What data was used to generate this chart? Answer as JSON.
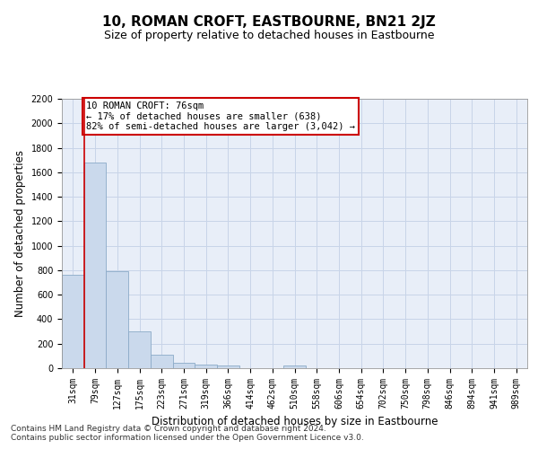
{
  "title": "10, ROMAN CROFT, EASTBOURNE, BN21 2JZ",
  "subtitle": "Size of property relative to detached houses in Eastbourne",
  "xlabel": "Distribution of detached houses by size in Eastbourne",
  "ylabel": "Number of detached properties",
  "footer_line1": "Contains HM Land Registry data © Crown copyright and database right 2024.",
  "footer_line2": "Contains public sector information licensed under the Open Government Licence v3.0.",
  "bar_labels": [
    "31sqm",
    "79sqm",
    "127sqm",
    "175sqm",
    "223sqm",
    "271sqm",
    "319sqm",
    "366sqm",
    "414sqm",
    "462sqm",
    "510sqm",
    "558sqm",
    "606sqm",
    "654sqm",
    "702sqm",
    "750sqm",
    "798sqm",
    "846sqm",
    "894sqm",
    "941sqm",
    "989sqm"
  ],
  "bar_values": [
    760,
    1680,
    790,
    300,
    110,
    45,
    32,
    20,
    0,
    0,
    20,
    0,
    0,
    0,
    0,
    0,
    0,
    0,
    0,
    0,
    0
  ],
  "bar_color": "#cad9ec",
  "bar_edgecolor": "#8baac8",
  "annotation_box_text": "10 ROMAN CROFT: 76sqm\n← 17% of detached houses are smaller (638)\n82% of semi-detached houses are larger (3,042) →",
  "annotation_box_color": "#cc0000",
  "annotation_box_fill": "#ffffff",
  "vline_color": "#cc0000",
  "vline_pos": 0.5,
  "ylim": [
    0,
    2200
  ],
  "yticks": [
    0,
    200,
    400,
    600,
    800,
    1000,
    1200,
    1400,
    1600,
    1800,
    2000,
    2200
  ],
  "grid_color": "#c8d4e8",
  "bg_color": "#e8eef8",
  "title_fontsize": 11,
  "subtitle_fontsize": 9,
  "axis_label_fontsize": 8.5,
  "tick_fontsize": 7,
  "annot_fontsize": 7.5,
  "footer_fontsize": 6.5
}
